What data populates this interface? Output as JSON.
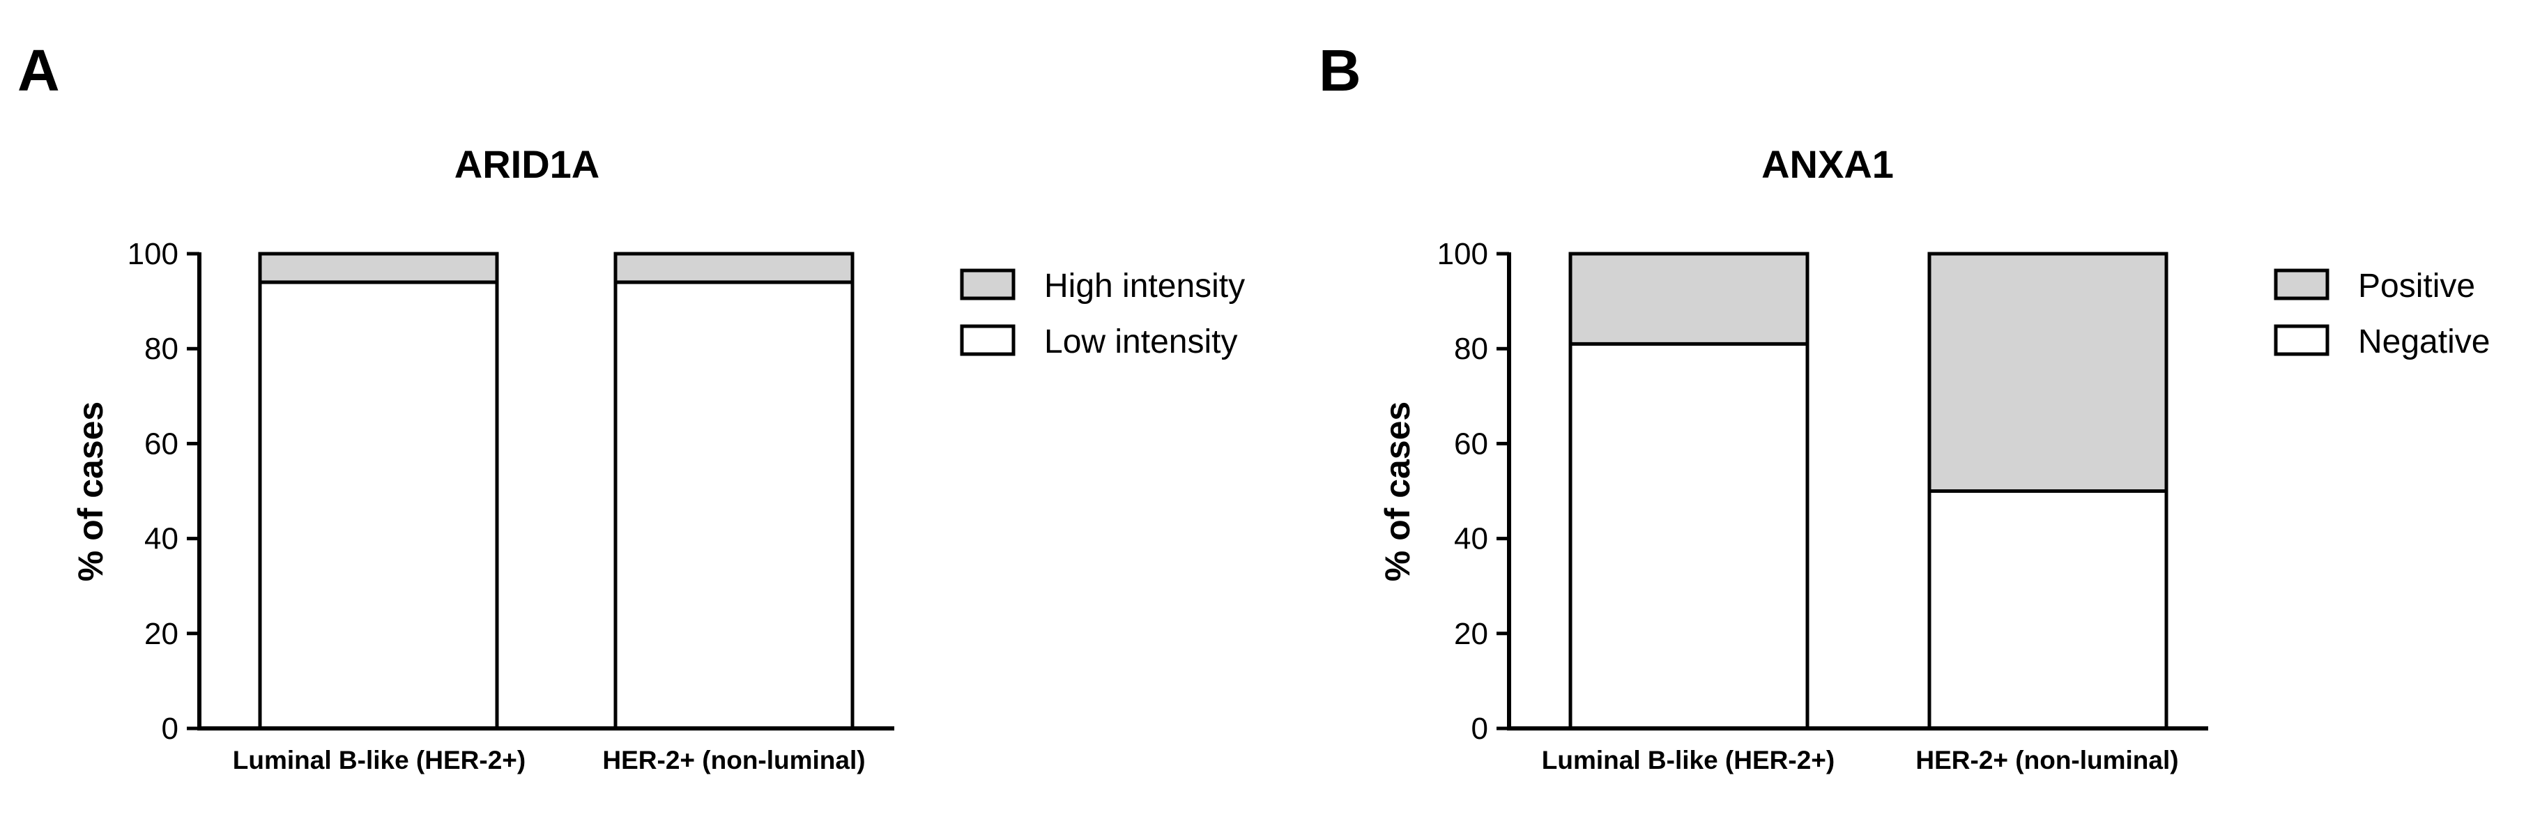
{
  "chart_data": [
    {
      "panel_letter": "A",
      "type": "bar",
      "stacked": true,
      "title": "ARID1A",
      "xlabel": "",
      "ylabel": "% of cases",
      "ylim": [
        0,
        100
      ],
      "yticks": [
        "0",
        "20",
        "40",
        "60",
        "80",
        "100"
      ],
      "categories": [
        "Luminal B-like (HER-2+)",
        "HER-2+ (non-luminal)"
      ],
      "series": [
        {
          "name": "Low intensity",
          "color": "#ffffff",
          "values": [
            94,
            94
          ]
        },
        {
          "name": "High intensity",
          "color": "#d3d3d3",
          "values": [
            6,
            6
          ]
        }
      ],
      "legend": [
        "High intensity",
        "Low intensity"
      ],
      "legend_colors": [
        "#d3d3d3",
        "#ffffff"
      ],
      "legend_position": "right"
    },
    {
      "panel_letter": "B",
      "type": "bar",
      "stacked": true,
      "title": "ANXA1",
      "xlabel": "",
      "ylabel": "% of cases",
      "ylim": [
        0,
        100
      ],
      "yticks": [
        "0",
        "20",
        "40",
        "60",
        "80",
        "100"
      ],
      "categories": [
        "Luminal B-like (HER-2+)",
        "HER-2+ (non-luminal)"
      ],
      "series": [
        {
          "name": "Negative",
          "color": "#ffffff",
          "values": [
            81,
            50
          ]
        },
        {
          "name": "Positive",
          "color": "#d3d3d3",
          "values": [
            19,
            50
          ]
        }
      ],
      "legend": [
        "Positive",
        "Negative"
      ],
      "legend_colors": [
        "#d3d3d3",
        "#ffffff"
      ],
      "legend_position": "right"
    }
  ]
}
